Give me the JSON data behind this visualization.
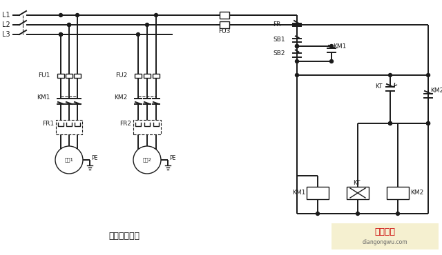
{
  "title": "自动顺序控制",
  "bg_color": "#ffffff",
  "line_color": "#1a1a1a",
  "text_color": "#1a1a1a",
  "watermark_bg": "#f5f0d0",
  "watermark_text1": "电工之屋",
  "watermark_text2": "diangongwu.com",
  "lw": 1.4,
  "lw_thin": 1.0,
  "lw_dash": 0.8
}
